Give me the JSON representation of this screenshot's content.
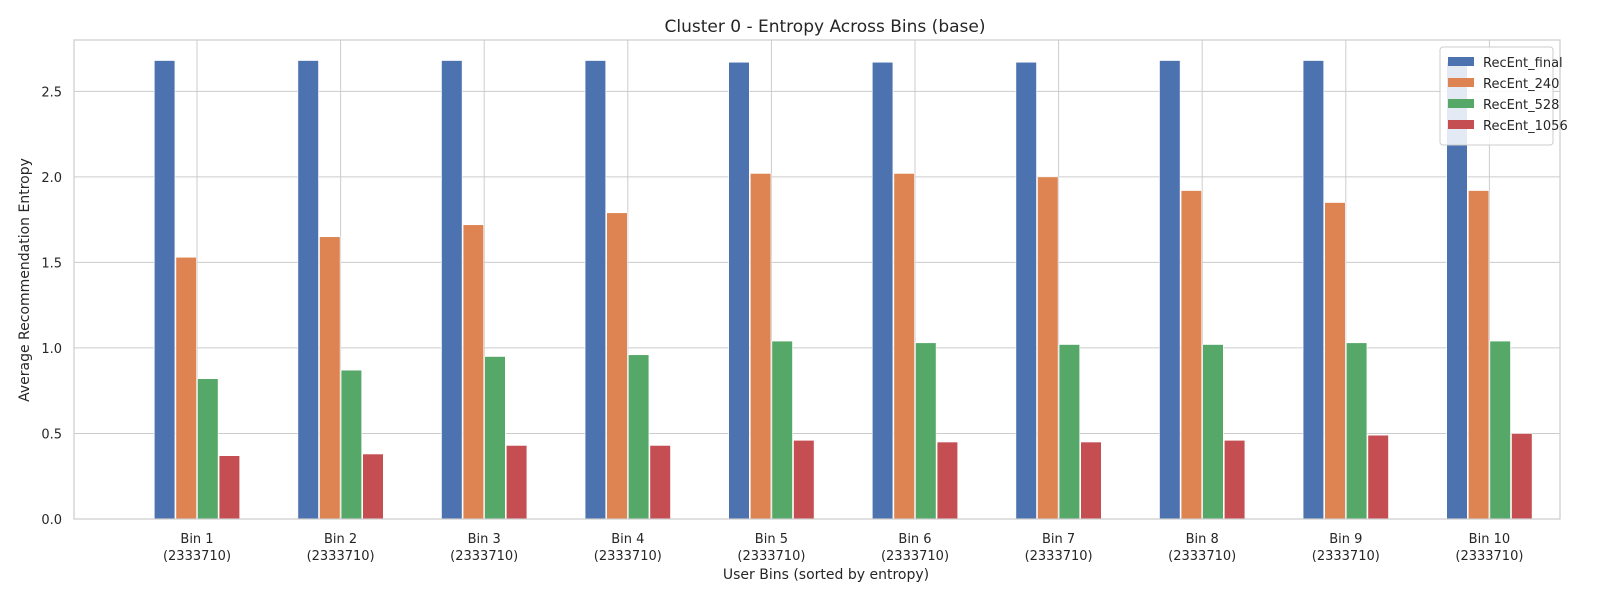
{
  "chart_data": {
    "type": "bar",
    "title": "Cluster 0 - Entropy Across Bins (base)",
    "xlabel": "User Bins (sorted by entropy)",
    "ylabel": "Average Recommendation Entropy",
    "categories": [
      [
        "Bin 1",
        "(2333710)"
      ],
      [
        "Bin 2",
        "(2333710)"
      ],
      [
        "Bin 3",
        "(2333710)"
      ],
      [
        "Bin 4",
        "(2333710)"
      ],
      [
        "Bin 5",
        "(2333710)"
      ],
      [
        "Bin 6",
        "(2333710)"
      ],
      [
        "Bin 7",
        "(2333710)"
      ],
      [
        "Bin 8",
        "(2333710)"
      ],
      [
        "Bin 9",
        "(2333710)"
      ],
      [
        "Bin 10",
        "(2333710)"
      ]
    ],
    "ylim": [
      0,
      2.8
    ],
    "yticks": [
      0.0,
      0.5,
      1.0,
      1.5,
      2.0,
      2.5
    ],
    "ytick_labels": [
      "0.0",
      "0.5",
      "1.0",
      "1.5",
      "2.0",
      "2.5"
    ],
    "grid": true,
    "legend_position": "top-right",
    "series": [
      {
        "name": "RecEnt_final",
        "color": "#4c72b0",
        "values": [
          2.68,
          2.68,
          2.68,
          2.68,
          2.67,
          2.67,
          2.67,
          2.68,
          2.68,
          2.67
        ]
      },
      {
        "name": "RecEnt_240",
        "color": "#dd8452",
        "values": [
          1.53,
          1.65,
          1.72,
          1.79,
          2.02,
          2.02,
          2.0,
          1.92,
          1.85,
          1.92
        ]
      },
      {
        "name": "RecEnt_528",
        "color": "#55a868",
        "values": [
          0.82,
          0.87,
          0.95,
          0.96,
          1.04,
          1.03,
          1.02,
          1.02,
          1.03,
          1.04
        ]
      },
      {
        "name": "RecEnt_1056",
        "color": "#c44e52",
        "values": [
          0.37,
          0.38,
          0.43,
          0.43,
          0.46,
          0.45,
          0.45,
          0.46,
          0.49,
          0.5
        ]
      }
    ]
  }
}
